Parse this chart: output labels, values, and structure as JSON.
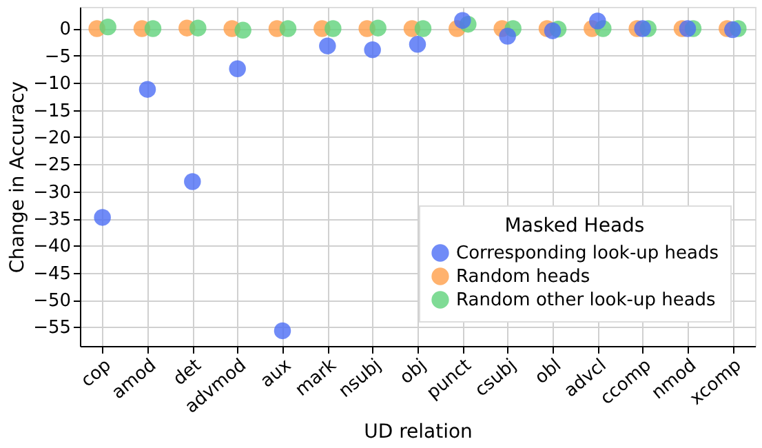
{
  "chart_data": {
    "type": "scatter",
    "xlabel": "UD relation",
    "ylabel": "Change in Accuracy",
    "legend_title": "Masked Heads",
    "legend": "bottom right",
    "grid": true,
    "marker": "circle",
    "categories": [
      "cop",
      "amod",
      "det",
      "advmod",
      "aux",
      "mark",
      "nsubj",
      "obj",
      "punct",
      "csubj",
      "obl",
      "advcl",
      "ccomp",
      "nmod",
      "xcomp"
    ],
    "ylim": [
      -58.5,
      4
    ],
    "yticks": [
      0,
      -5,
      -10,
      -15,
      -20,
      -25,
      -30,
      -35,
      -40,
      -45,
      -50,
      -55
    ],
    "series": [
      {
        "name": "Corresponding look-up heads",
        "color": "#4c6ef5",
        "values": [
          -34.8,
          -11.2,
          -28.2,
          -7.4,
          -55.7,
          -3.2,
          -3.9,
          -2.9,
          1.5,
          -1.4,
          -0.4,
          1.4,
          0,
          0,
          -0.2
        ]
      },
      {
        "name": "Random heads",
        "color": "#ff9f4a",
        "values": [
          0,
          0,
          0.1,
          0,
          0,
          0,
          0,
          0,
          0,
          0,
          0,
          0,
          0,
          0,
          0
        ]
      },
      {
        "name": "Random other look-up heads",
        "color": "#5fd27a",
        "values": [
          0.3,
          0,
          0.1,
          -0.3,
          0,
          0,
          0.1,
          0,
          0.8,
          0,
          -0.1,
          0,
          0,
          0,
          0
        ]
      }
    ]
  }
}
